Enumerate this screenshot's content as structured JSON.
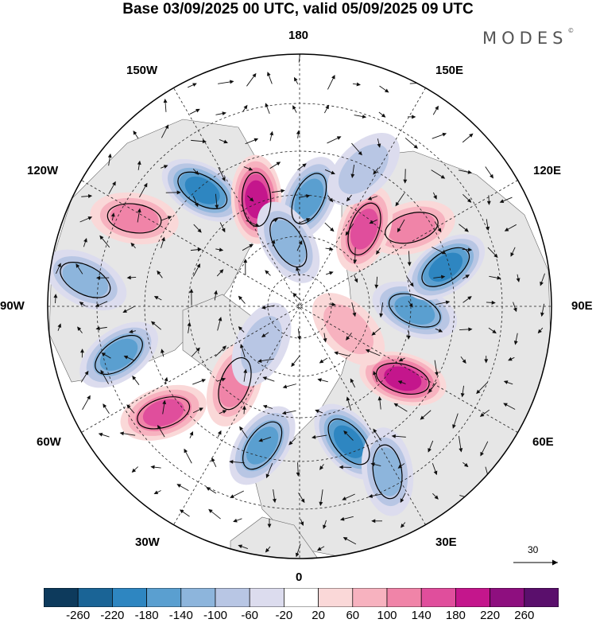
{
  "title": "Base 03/09/2025 00 UTC, valid 05/09/2025 09 UTC",
  "brand": "MODES",
  "brand_mark": "©",
  "longitude_labels": {
    "top": "180",
    "bottom": "0",
    "left": "90W",
    "right": "90E",
    "l150w": "150W",
    "l120w": "120W",
    "l60w": "60W",
    "l30w": "30W",
    "l150e": "150E",
    "l120e": "120E",
    "l60e": "60E",
    "l30e": "30E"
  },
  "reference_vector": "30",
  "colorbar": {
    "labels": [
      "-260",
      "-220",
      "-180",
      "-140",
      "-100",
      "-60",
      "-20",
      "20",
      "60",
      "100",
      "140",
      "180",
      "220",
      "260"
    ],
    "colors": [
      "#0d3a5c",
      "#1a6496",
      "#2e86c1",
      "#5a9fd0",
      "#8db5dc",
      "#b8c6e4",
      "#dcdcee",
      "#ffffff",
      "#fad8d8",
      "#f7b2bf",
      "#f084a8",
      "#e04e9c",
      "#c4168c",
      "#8e0f7f",
      "#5a0f6c"
    ]
  },
  "anomalies": [
    {
      "lon": -140,
      "lat": 48,
      "value": -190
    },
    {
      "lon": -158,
      "lat": 58,
      "value": 190
    },
    {
      "lon": -118,
      "lat": 38,
      "value": 130
    },
    {
      "lon": -97,
      "lat": 30,
      "value": -120
    },
    {
      "lon": -75,
      "lat": 38,
      "value": -150
    },
    {
      "lon": -52,
      "lat": 42,
      "value": 170
    },
    {
      "lon": -40,
      "lat": 62,
      "value": 120
    },
    {
      "lon": -15,
      "lat": 50,
      "value": -140
    },
    {
      "lon": 20,
      "lat": 50,
      "value": -200
    },
    {
      "lon": 28,
      "lat": 38,
      "value": -120
    },
    {
      "lon": 55,
      "lat": 55,
      "value": 180
    },
    {
      "lon": 88,
      "lat": 58,
      "value": -160
    },
    {
      "lon": 105,
      "lat": 48,
      "value": -180
    },
    {
      "lon": 125,
      "lat": 52,
      "value": 110
    },
    {
      "lon": 140,
      "lat": 62,
      "value": 150
    },
    {
      "lon": 175,
      "lat": 60,
      "value": -150
    },
    {
      "lon": -170,
      "lat": 72,
      "value": -100
    },
    {
      "lon": 155,
      "lat": 48,
      "value": -80
    },
    {
      "lon": -45,
      "lat": 75,
      "value": -90
    },
    {
      "lon": 65,
      "lat": 75,
      "value": 90
    }
  ]
}
